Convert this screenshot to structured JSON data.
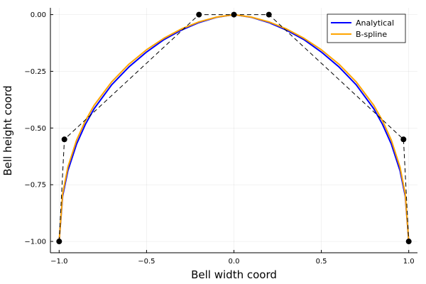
{
  "chart_data": {
    "type": "line",
    "title": "",
    "xlabel": "Bell width coord",
    "ylabel": "Bell height coord",
    "xlim": [
      -1.05,
      1.05
    ],
    "ylim": [
      -1.05,
      0.03
    ],
    "x_ticks": [
      -1.0,
      -0.5,
      0.0,
      0.5,
      1.0
    ],
    "x_tick_labels": [
      "−1.0",
      "−0.5",
      "0.0",
      "0.5",
      "1.0"
    ],
    "y_ticks": [
      0.0,
      -0.25,
      -0.5,
      -0.75,
      -1.0
    ],
    "y_tick_labels": [
      "0.00",
      "−0.25",
      "−0.50",
      "−0.75",
      "−1.00"
    ],
    "grid": true,
    "legend_position": "top-right",
    "series": [
      {
        "name": "Analytical",
        "color": "#0000ff",
        "style": "solid",
        "x": [
          -1.0,
          -0.98,
          -0.95,
          -0.9,
          -0.85,
          -0.8,
          -0.7,
          -0.6,
          -0.5,
          -0.4,
          -0.3,
          -0.2,
          -0.1,
          0.0,
          0.1,
          0.2,
          0.3,
          0.4,
          0.5,
          0.6,
          0.7,
          0.8,
          0.85,
          0.9,
          0.95,
          0.98,
          1.0
        ],
        "y": [
          -1.0,
          -0.8,
          -0.688,
          -0.57,
          -0.484,
          -0.415,
          -0.31,
          -0.23,
          -0.165,
          -0.11,
          -0.068,
          -0.035,
          -0.012,
          0.0,
          -0.012,
          -0.035,
          -0.068,
          -0.11,
          -0.165,
          -0.23,
          -0.31,
          -0.415,
          -0.484,
          -0.57,
          -0.688,
          -0.8,
          -1.0
        ]
      },
      {
        "name": "B-spline",
        "color": "#ffa500",
        "style": "solid",
        "x": [
          -1.0,
          -0.98,
          -0.95,
          -0.9,
          -0.85,
          -0.8,
          -0.7,
          -0.6,
          -0.5,
          -0.4,
          -0.3,
          -0.2,
          -0.1,
          0.0,
          0.1,
          0.2,
          0.3,
          0.4,
          0.5,
          0.6,
          0.7,
          0.8,
          0.85,
          0.9,
          0.95,
          0.98,
          1.0
        ],
        "y": [
          -1.0,
          -0.79,
          -0.672,
          -0.553,
          -0.468,
          -0.4,
          -0.297,
          -0.218,
          -0.155,
          -0.104,
          -0.063,
          -0.032,
          -0.011,
          0.0,
          -0.011,
          -0.032,
          -0.063,
          -0.104,
          -0.155,
          -0.218,
          -0.297,
          -0.4,
          -0.468,
          -0.553,
          -0.672,
          -0.79,
          -1.0
        ]
      },
      {
        "name": "",
        "color": "#000000",
        "style": "dashed-markers",
        "x": [
          -1.0,
          -0.97,
          -0.2,
          0.0,
          0.2,
          0.97,
          1.0
        ],
        "y": [
          -1.0,
          -0.55,
          0.0,
          0.0,
          0.0,
          -0.55,
          -1.0
        ]
      }
    ]
  }
}
